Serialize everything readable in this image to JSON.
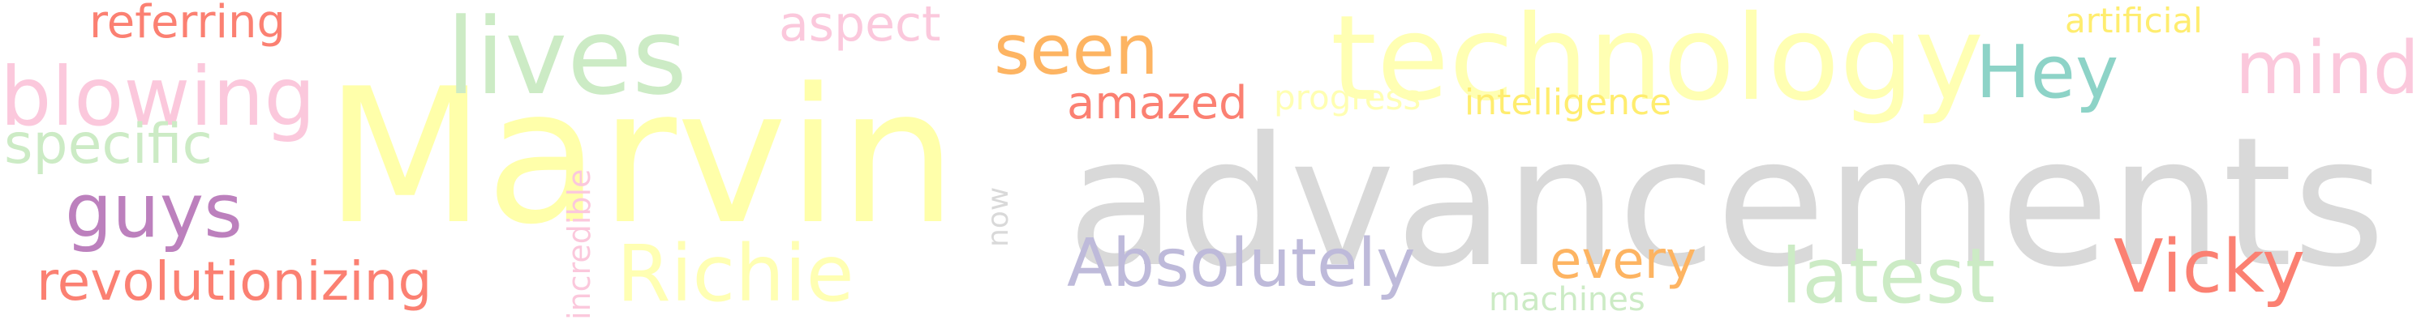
{
  "words": [
    {
      "text": "Marvin",
      "color": "#ffffaa"
    },
    {
      "text": "advancements",
      "color": "#d9d9d9"
    },
    {
      "text": "technology",
      "color": "#ffffb3"
    },
    {
      "text": "lives",
      "color": "#ccebc5"
    },
    {
      "text": "blowing",
      "color": "#fbc8dc"
    },
    {
      "text": "mind",
      "color": "#fbc8dc"
    },
    {
      "text": "Hey",
      "color": "#8dd3c7"
    },
    {
      "text": "seen",
      "color": "#fdb462"
    },
    {
      "text": "aspect",
      "color": "#fbc8dc"
    },
    {
      "text": "referring",
      "color": "#fb8072"
    },
    {
      "text": "artificial",
      "color": "#ffed6f"
    },
    {
      "text": "specific",
      "color": "#ccebc5"
    },
    {
      "text": "guys",
      "color": "#bc80bd"
    },
    {
      "text": "amazed",
      "color": "#fb8072"
    },
    {
      "text": "progress",
      "color": "#ffffb3"
    },
    {
      "text": "intelligence",
      "color": "#ffed6f"
    },
    {
      "text": "incredible",
      "color": "#fbc8dc"
    },
    {
      "text": "now",
      "color": "#d9d9d9"
    },
    {
      "text": "Richie",
      "color": "#ffffb3"
    },
    {
      "text": "Absolutely",
      "color": "#bebada"
    },
    {
      "text": "every",
      "color": "#fdb462"
    },
    {
      "text": "machines",
      "color": "#ccebc5"
    },
    {
      "text": "latest",
      "color": "#ccebc5"
    },
    {
      "text": "Vicky",
      "color": "#fb8072"
    },
    {
      "text": "revolutionizing",
      "color": "#fb8072"
    }
  ]
}
